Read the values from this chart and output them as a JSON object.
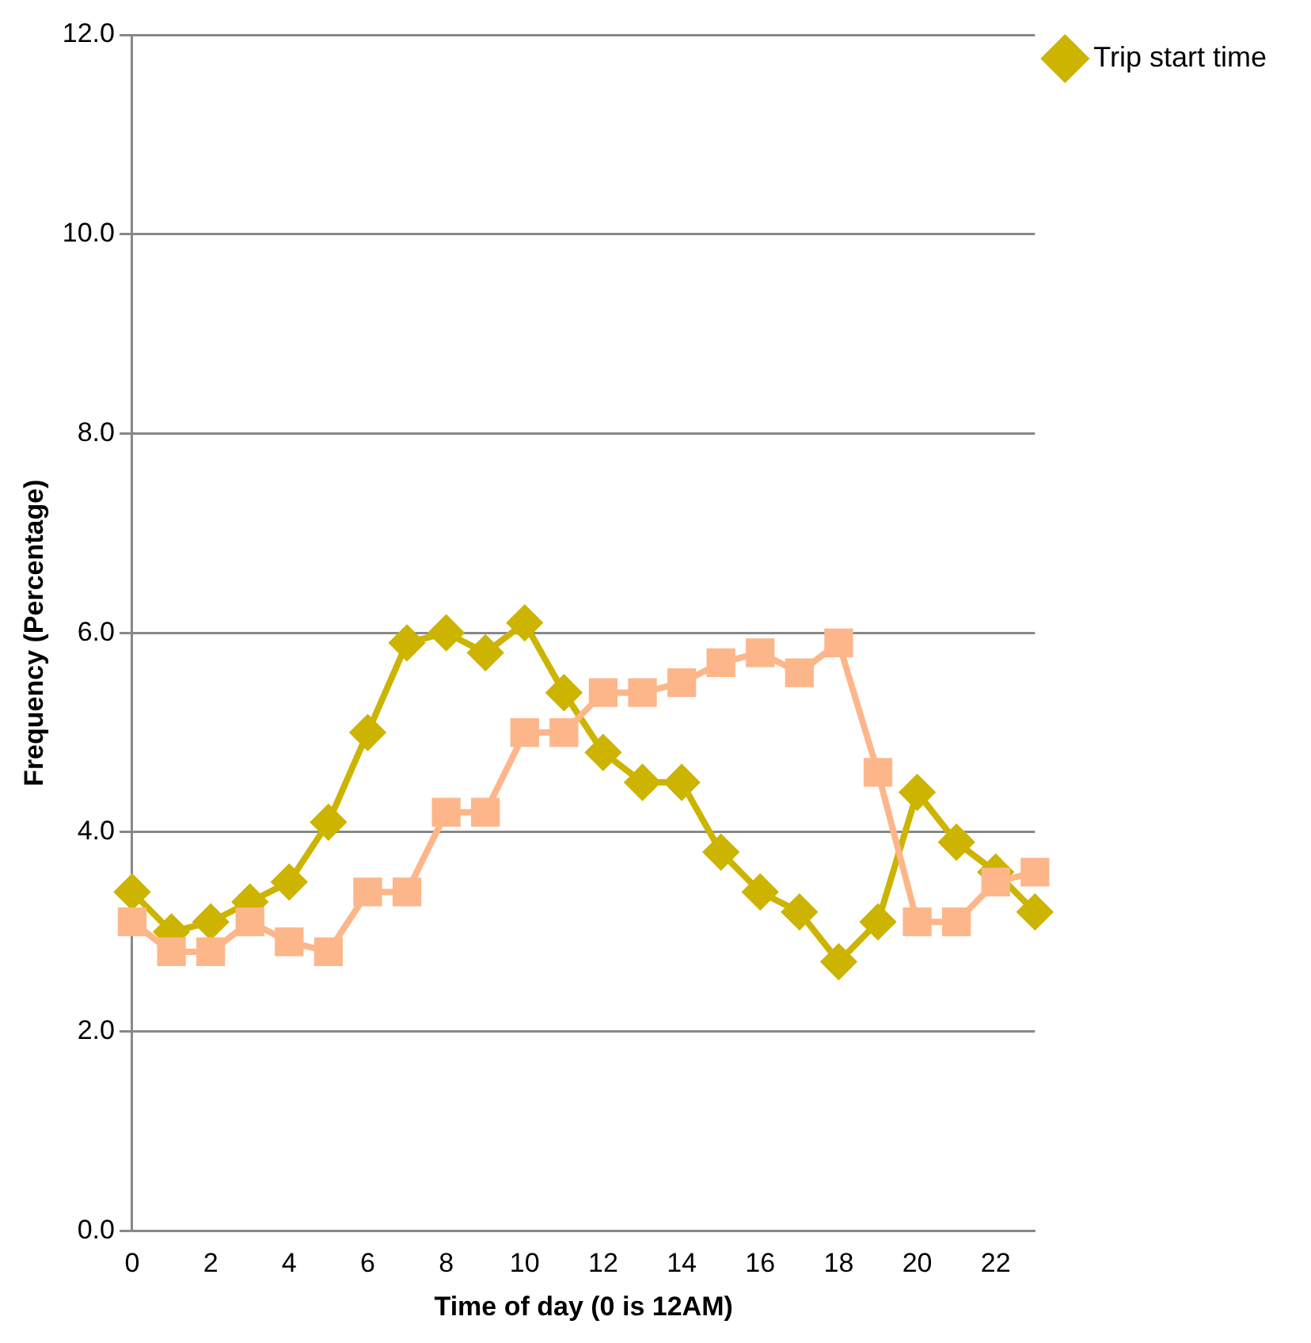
{
  "chart_data": {
    "type": "line",
    "xlabel": "Time of day (0 is 12AM)",
    "ylabel": "Frequency (Percentage)",
    "categories": [
      "0",
      null,
      "2",
      null,
      "4",
      null,
      "6",
      null,
      "8",
      null,
      "10",
      null,
      "12",
      null,
      "14",
      null,
      "16",
      null,
      "18",
      null,
      "20",
      null,
      "22",
      null
    ],
    "series": [
      {
        "name": "Trip start time",
        "color": "#ccb400",
        "marker": "diamond",
        "values": [
          3.4,
          3.0,
          3.1,
          3.3,
          3.5,
          4.1,
          5.0,
          5.9,
          6.0,
          5.8,
          6.1,
          5.4,
          4.8,
          4.5,
          4.5,
          3.8,
          3.4,
          3.2,
          2.7,
          3.1,
          4.4,
          3.9,
          3.6,
          3.2
        ]
      },
      {
        "color": "#fdb68a",
        "marker": "square",
        "values": [
          3.1,
          2.8,
          2.8,
          3.1,
          2.9,
          2.8,
          3.4,
          3.4,
          4.2,
          4.2,
          5.0,
          5.0,
          5.4,
          5.4,
          5.5,
          5.7,
          5.8,
          5.6,
          5.9,
          4.6,
          3.1,
          3.1,
          3.5,
          3.6
        ]
      }
    ],
    "ylim": [
      0,
      12
    ],
    "yticks": [
      {
        "value": 0,
        "label": "0.0"
      },
      {
        "value": 2,
        "label": "2.0"
      },
      {
        "value": 4,
        "label": "4.0"
      },
      {
        "value": 6,
        "label": "6.0"
      },
      {
        "value": 8,
        "label": "8.0"
      },
      {
        "value": 10,
        "label": "10.0"
      },
      {
        "value": 12,
        "label": "12.0"
      }
    ],
    "grid": "y",
    "legend": "right",
    "line_style": "solid"
  }
}
